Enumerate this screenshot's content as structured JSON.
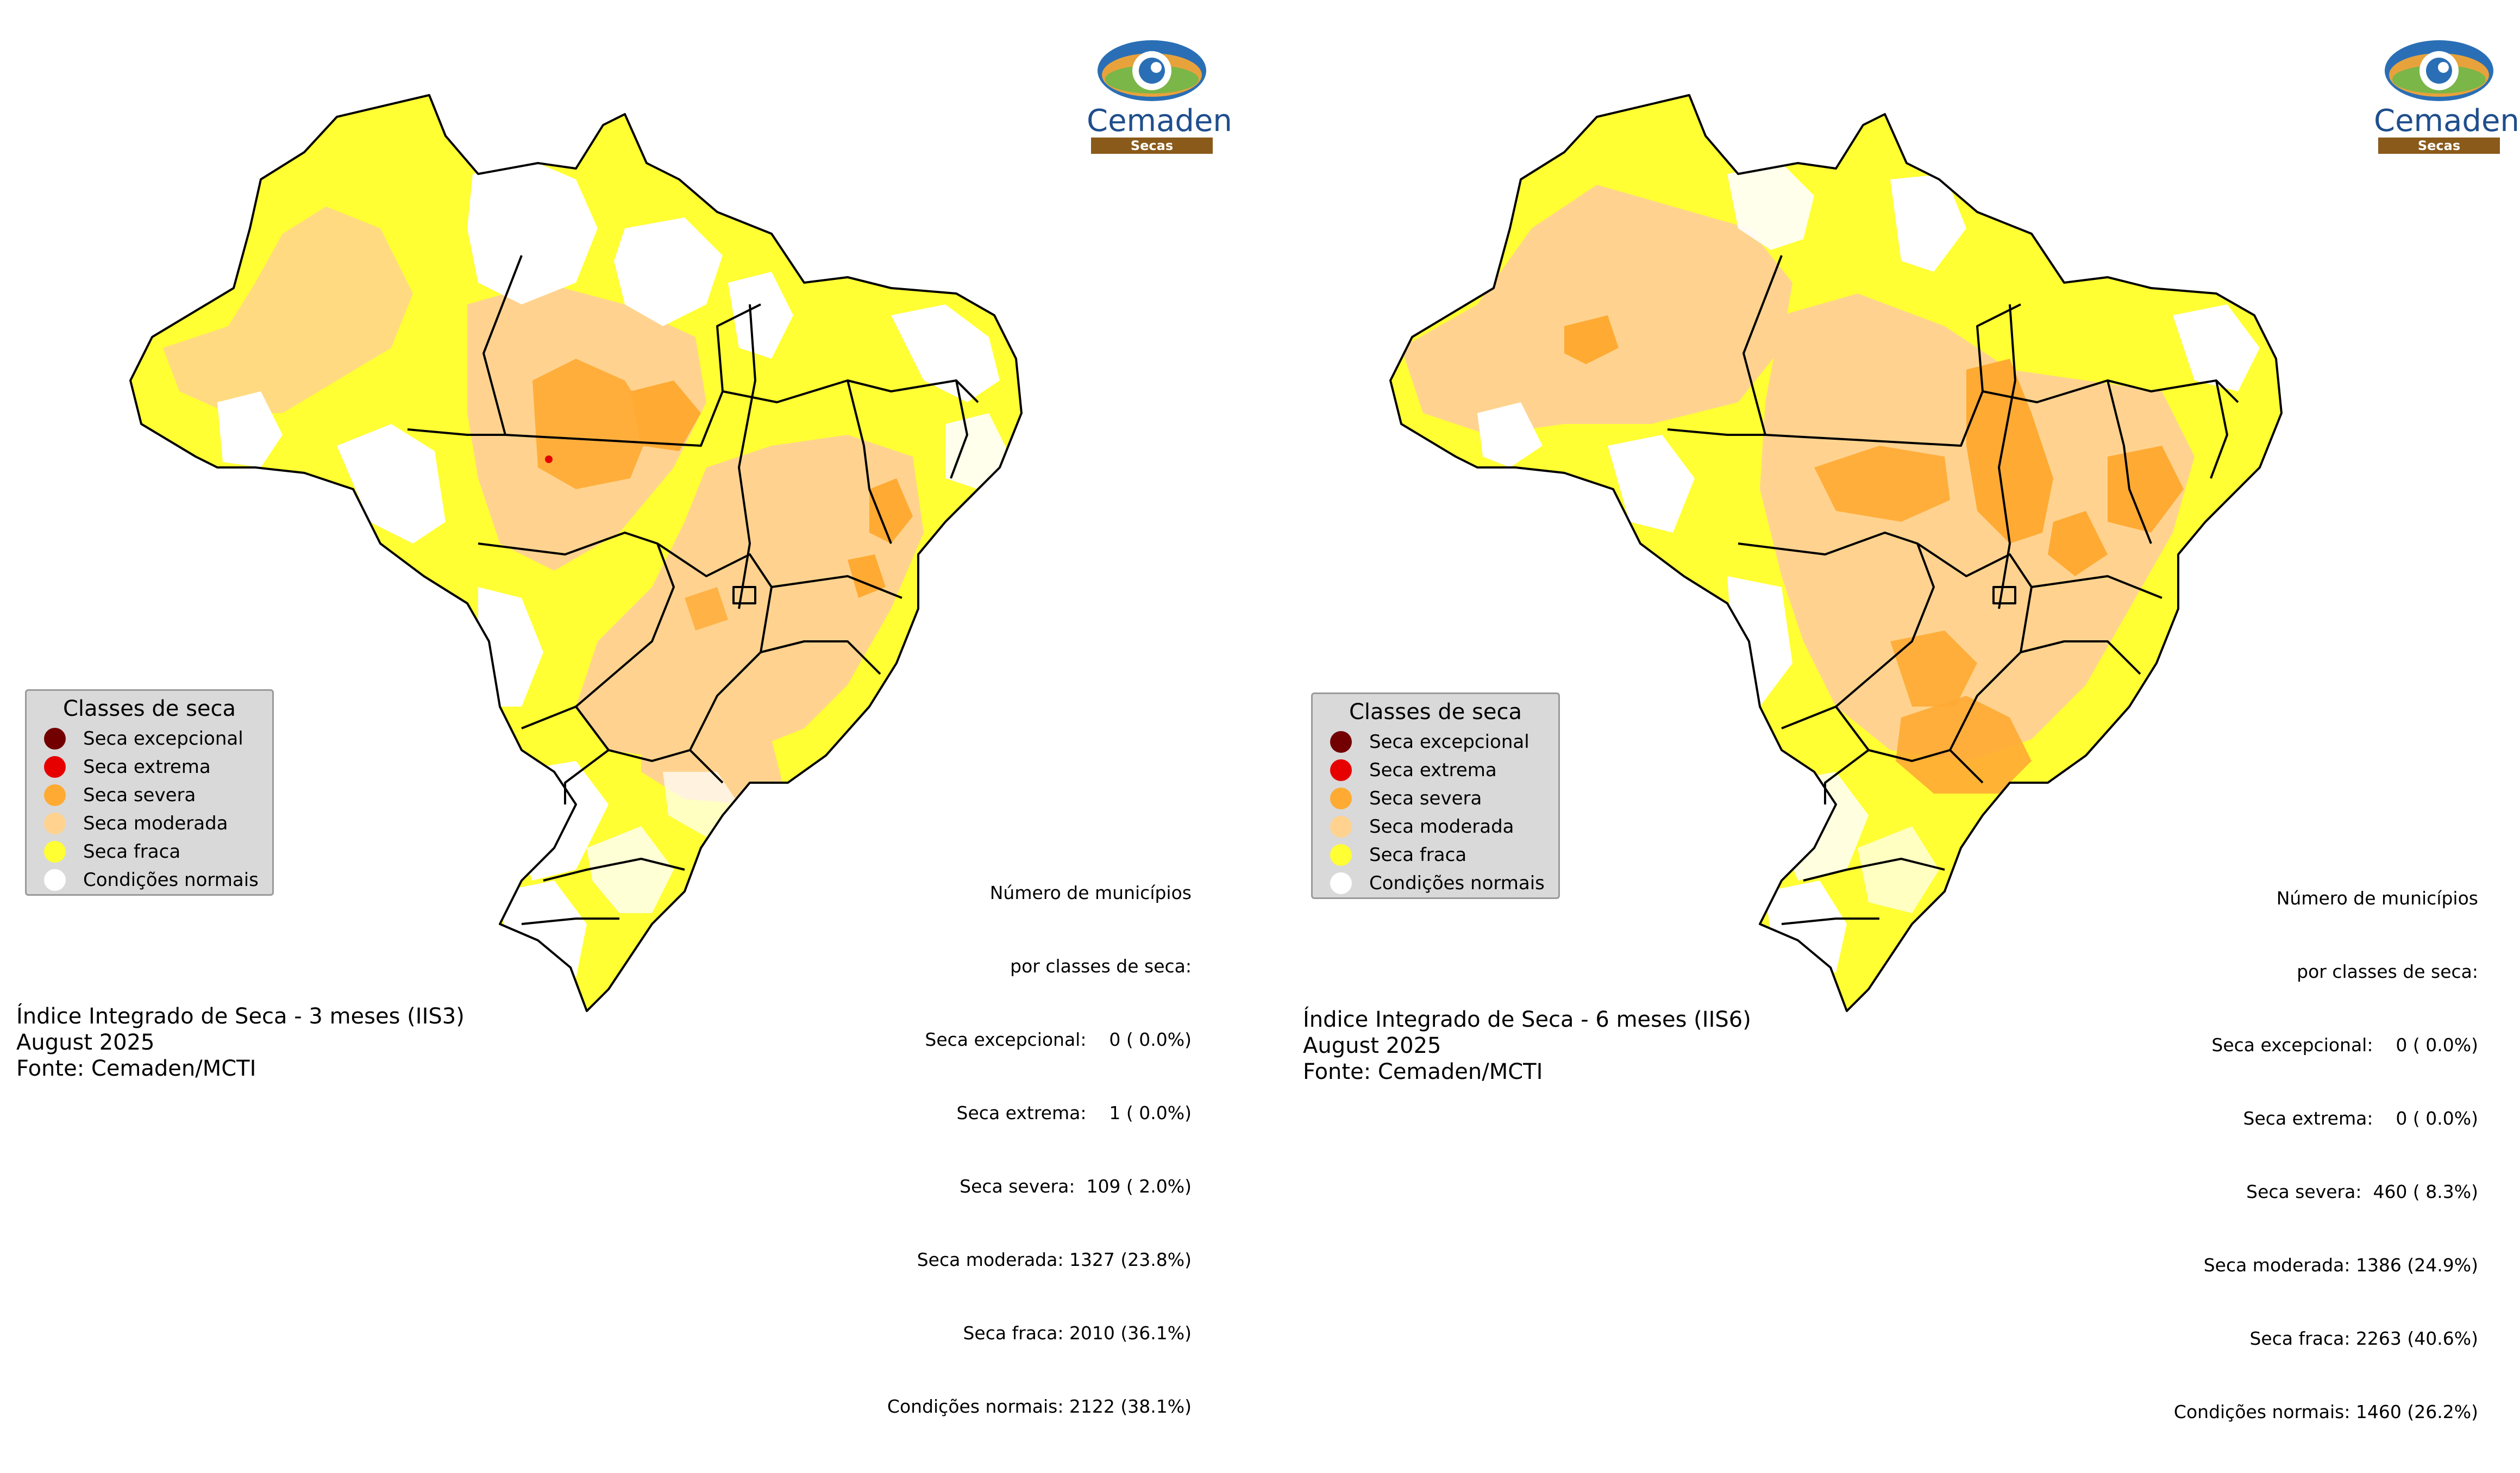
{
  "panels": [
    {
      "logo": {
        "word": "Cemaden",
        "bar": "Secas"
      },
      "legend": {
        "title": "Classes de seca",
        "items": [
          {
            "label": "Seca excepcional",
            "color": "#730000"
          },
          {
            "label": "Seca extrema",
            "color": "#e60000"
          },
          {
            "label": "Seca severa",
            "color": "#ffaa33"
          },
          {
            "label": "Seca moderada",
            "color": "#ffd38f"
          },
          {
            "label": "Seca fraca",
            "color": "#ffff33"
          },
          {
            "label": "Condições normais",
            "color": "#ffffff"
          }
        ]
      },
      "stats": {
        "heading1": "Número de municípios",
        "heading2": "por classes de seca:",
        "rows": [
          "Seca excepcional:    0 ( 0.0%)",
          "Seca extrema:    1 ( 0.0%)",
          "Seca severa:  109 ( 2.0%)",
          "Seca moderada: 1327 (23.8%)",
          "Seca fraca: 2010 (36.1%)",
          "Condições normais: 2122 (38.1%)"
        ]
      },
      "caption": {
        "line1": "Índice Integrado de Seca - 3 meses (IIS3)",
        "line2": "August 2025",
        "line3": "Fonte: Cemaden/MCTI"
      }
    },
    {
      "logo": {
        "word": "Cemaden",
        "bar": "Secas"
      },
      "legend": {
        "title": "Classes de seca",
        "items": [
          {
            "label": "Seca excepcional",
            "color": "#730000"
          },
          {
            "label": "Seca extrema",
            "color": "#e60000"
          },
          {
            "label": "Seca severa",
            "color": "#ffaa33"
          },
          {
            "label": "Seca moderada",
            "color": "#ffd38f"
          },
          {
            "label": "Seca fraca",
            "color": "#ffff33"
          },
          {
            "label": "Condições normais",
            "color": "#ffffff"
          }
        ]
      },
      "stats": {
        "heading1": "Número de municípios",
        "heading2": "por classes de seca:",
        "rows": [
          "Seca excepcional:    0 ( 0.0%)",
          "Seca extrema:    0 ( 0.0%)",
          "Seca severa:  460 ( 8.3%)",
          "Seca moderada: 1386 (24.9%)",
          "Seca fraca: 2263 (40.6%)",
          "Condições normais: 1460 (26.2%)"
        ]
      },
      "caption": {
        "line1": "Índice Integrado de Seca - 6 meses (IIS6)",
        "line2": "August 2025",
        "line3": "Fonte: Cemaden/MCTI"
      }
    }
  ]
}
